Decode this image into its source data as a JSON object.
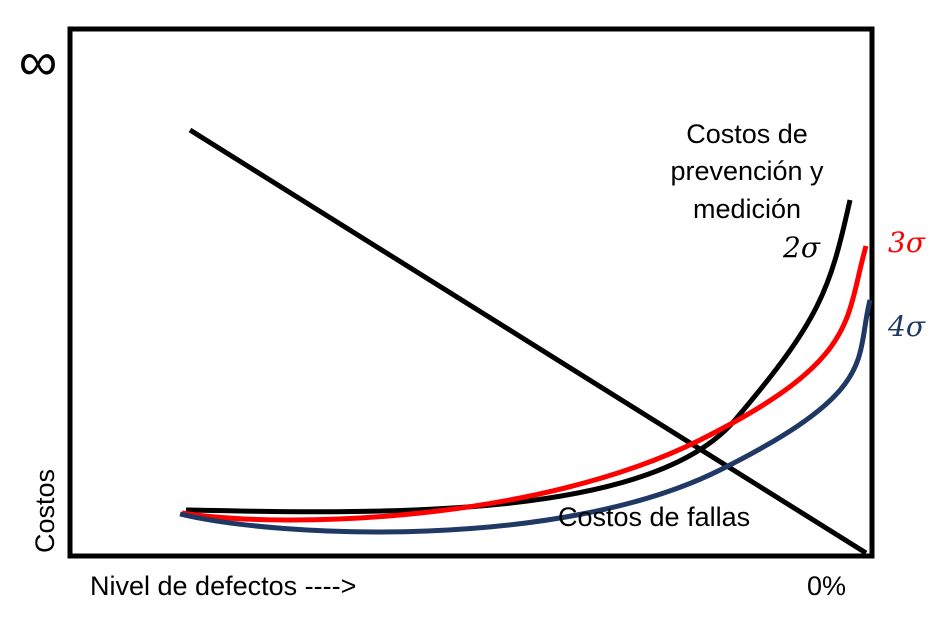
{
  "diagram": {
    "infinity_symbol": "∞",
    "y_axis_label": "Costos",
    "x_axis_label": "Nivel de defectos ---->",
    "x_axis_end_label": "0%",
    "prevention_label": [
      "Costos de",
      "prevención y",
      "medición"
    ],
    "failure_label": "Costos de fallas",
    "curves": [
      {
        "label": "2σ",
        "color": "#000000"
      },
      {
        "label": "3σ",
        "color": "#ff0000"
      },
      {
        "label": "4σ",
        "color": "#203864"
      }
    ],
    "failure_line_color": "#000000",
    "frame_color": "#000000"
  }
}
